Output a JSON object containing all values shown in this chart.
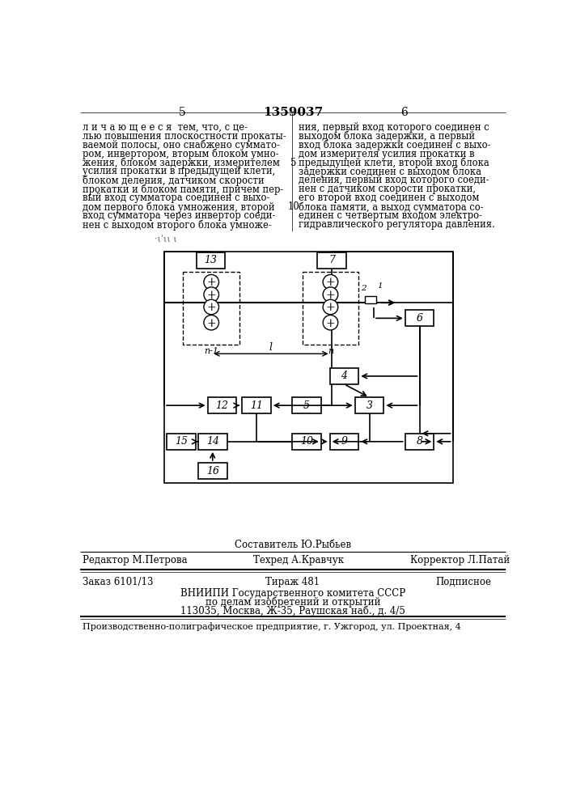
{
  "bg_color": "#ffffff",
  "page_number_left": "5",
  "page_number_center": "1359037",
  "page_number_right": "6",
  "text_left": "л и ч а ю щ е е с я  тем, что, с це-\nлью повышения плоскостности прокаты-\nваемой полосы, оно снабжено суммато-\nром, инвертором, вторым блоком умно-\nжения, блоком задержки, измерителем\nусилия прокатки в предыдущей клети,\nблоком деления, датчиком скорости\nпрокатки и блоком памяти, причем пер-\nвый вход сумматора соединен с выхо-\nдом первого блока умножения, второй\nвход сумматора через инвертор соеди-\nнен с выходом второго блока умноже-",
  "text_right": "ния, первый вход которого соединен с\nвыходом блока задержки, а первый\nвход блока задержки соединен с выхо-\nдом измерителя усилия прокатки в\nпредыдущей клети, второй вход блока\nзадержки соединен с выходом блока\nделения, первый вход которого соеди-\nнен с датчиком скорости прокатки,\nего второй вход соединен с выходом\nблока памяти, а выход сумматора со-\nединен с четвертым входом электро-\nгидравлического регулятора давления.",
  "editor_line": "Составитель Ю.Рыбьев",
  "editor_left": "Редактор М.Петрова",
  "editor_mid": "Техред А.Кравчук",
  "editor_right": "Корректор Л.Патай",
  "order_line": "Заказ 6101/13",
  "order_mid": "Тираж 481",
  "order_right": "Подписное",
  "vnipi_line1": "ВНИИПИ Государственного комитета СССР",
  "vnipi_line2": "по делам изобретений и открытий",
  "vnipi_line3": "113035, Москва, Ж-35, Раушская наб., д. 4/5",
  "factory_line": "Производственно-полиграфическое предприятие, г. Ужгород, ул. Проектная, 4"
}
